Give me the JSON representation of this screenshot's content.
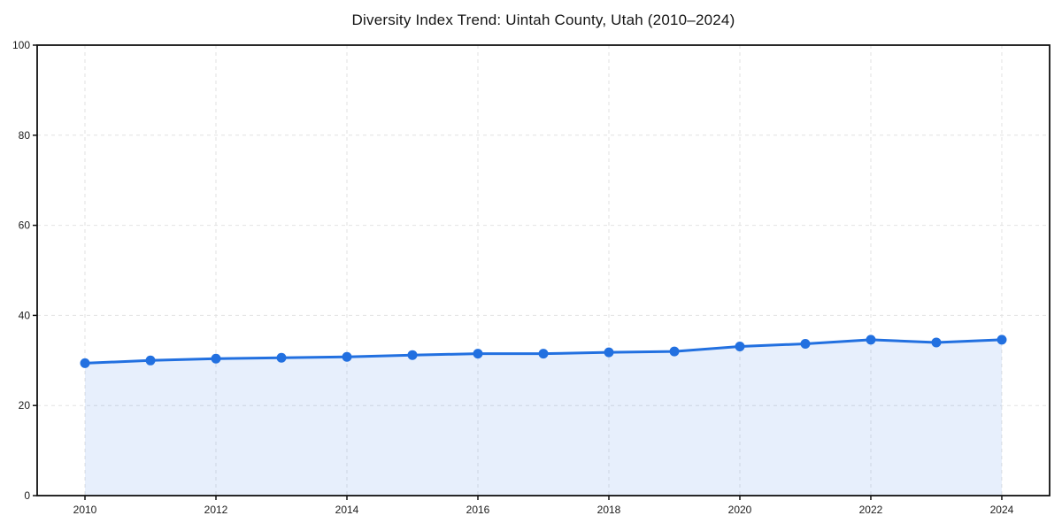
{
  "chart_data": {
    "type": "area",
    "title": "Diversity Index Trend: Uintah County, Utah (2010–2024)",
    "xlabel": "",
    "ylabel": "",
    "x": [
      2010,
      2011,
      2012,
      2013,
      2014,
      2015,
      2016,
      2017,
      2018,
      2019,
      2020,
      2021,
      2022,
      2023,
      2024
    ],
    "series": [
      {
        "name": "Diversity Index",
        "values": [
          29.4,
          30.0,
          30.4,
          30.6,
          30.8,
          31.2,
          31.5,
          31.5,
          31.8,
          32.0,
          33.1,
          33.7,
          34.6,
          34.0,
          34.6
        ]
      }
    ],
    "xlim": [
      2009.27,
      2024.73
    ],
    "ylim": [
      0,
      100
    ],
    "xticks": [
      2010,
      2012,
      2014,
      2016,
      2018,
      2020,
      2022,
      2024
    ],
    "yticks": [
      0,
      20,
      40,
      60,
      80,
      100
    ],
    "grid": "dashed",
    "legend": "none",
    "colors": {
      "line": "#2270e0",
      "marker": "#2270e0",
      "fill": "rgba(34, 112, 224, 0.11)",
      "grid": "#e2e2e2",
      "axis": "#111111",
      "tick_text": "#1c1c1c",
      "background": "#ffffff"
    }
  }
}
